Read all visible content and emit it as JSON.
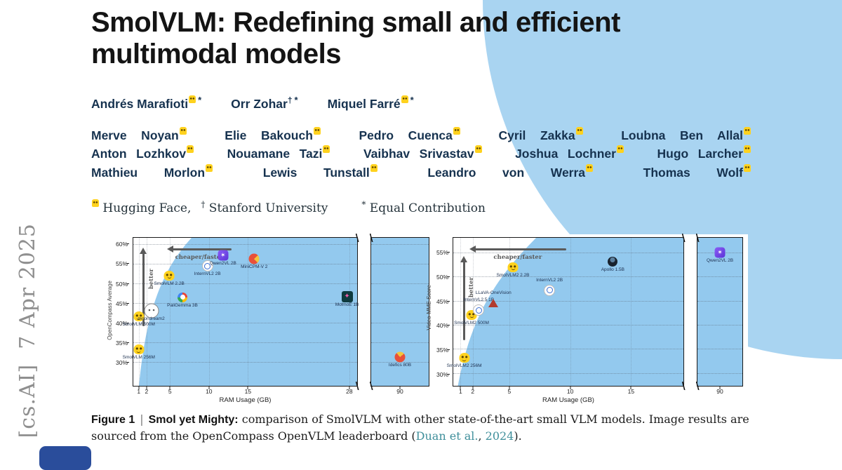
{
  "page": {
    "side_label": "[cs.AI]  7 Apr 2025",
    "title": "SmolVLM: Redefining small and efficient multimodal models",
    "authors_primary": [
      {
        "name": "Andrés Marafioti",
        "affil": "hf",
        "equal": true
      },
      {
        "name": "Orr Zohar",
        "affil": "dagger",
        "equal": true
      },
      {
        "name": "Miquel Farré",
        "affil": "hf",
        "equal": true
      }
    ],
    "authors_secondary": [
      "Merve Noyan",
      "Elie Bakouch",
      "Pedro Cuenca",
      "Cyril Zakka",
      "Loubna Ben Allal",
      "Anton Lozhkov",
      "Nouamane Tazi",
      "Vaibhav Srivastav",
      "Joshua Lochner",
      "Hugo Larcher",
      "Mathieu Morlon",
      "Lewis Tunstall",
      "Leandro von Werra",
      "Thomas Wolf"
    ],
    "affiliations": {
      "dagger_symbol": "†",
      "star_symbol": "*",
      "parts": [
        {
          "icon": "hf-badge",
          "text": "Hugging Face,"
        },
        {
          "symbol": "†",
          "text": "Stanford University"
        },
        {
          "symbol": "*",
          "text": "Equal Contribution",
          "gap": true
        }
      ]
    },
    "caption": {
      "figure_label": "Figure 1",
      "separator": "|",
      "bold": "Smol yet Mighty:",
      "text": " comparison of SmolVLM with other state-of-the-art small VLM models. Image results are sourced from the OpenCompass OpenVLM leaderboard (",
      "cite_link": "Duan et al.",
      "cite_sep": ", ",
      "cite_year": "2024",
      "close": ")."
    },
    "colors": {
      "accent_blue": "#a9d4f1",
      "chart_fill": "#93c9ee",
      "hf_yellow": "#ffd21e",
      "link_teal": "#3f8f9b",
      "author_navy": "#16324f",
      "bottom_shape_blue": "#2a4d9b"
    }
  },
  "icon_glyphs": {
    "molmo": "✦",
    "qwen": "✶"
  },
  "chart_data": [
    {
      "type": "scatter",
      "xlabel": "RAM Usage (GB)",
      "ylabel": "OpenCompass Average",
      "ylim": [
        24,
        61.8
      ],
      "x_main_range": [
        0.3,
        29
      ],
      "x_axis_break": true,
      "grid": true,
      "annotations": {
        "horizontal": "cheaper/faster",
        "vertical": "better"
      },
      "y_ticks": [
        {
          "value": 30,
          "label": "30%"
        },
        {
          "value": 35,
          "label": "35%"
        },
        {
          "value": 40,
          "label": "40%"
        },
        {
          "value": 45,
          "label": "45%"
        },
        {
          "value": 50,
          "label": "50%"
        },
        {
          "value": 55,
          "label": "55%"
        },
        {
          "value": 60,
          "label": "60%"
        }
      ],
      "x_ticks_main": [
        {
          "value": 1,
          "label": "1"
        },
        {
          "value": 2,
          "label": "2"
        },
        {
          "value": 5,
          "label": "5"
        },
        {
          "value": 10,
          "label": "10"
        },
        {
          "value": 15,
          "label": "15"
        },
        {
          "value": 28,
          "label": "28"
        }
      ],
      "x_ticks_side": [
        {
          "value": 90,
          "label": "90"
        }
      ],
      "points": [
        {
          "label": "SmolVLM 256M",
          "x": 1.0,
          "y": 33.3,
          "icon": "hf",
          "label_pos": "below"
        },
        {
          "label": "SmolVLM 500M",
          "x": 1.0,
          "y": 41.7,
          "icon": "hf",
          "label_pos": "below"
        },
        {
          "label": "moondream2",
          "x": 2.6,
          "y": 43.2,
          "icon": "moon",
          "label_pos": "below"
        },
        {
          "label": "SmolVLM 2.2B",
          "x": 4.9,
          "y": 52.2,
          "icon": "hf",
          "label_pos": "below"
        },
        {
          "label": "PaliGemma 3B",
          "x": 6.6,
          "y": 46.6,
          "icon": "google",
          "label_pos": "below"
        },
        {
          "label": "InternVL2 2B",
          "x": 9.8,
          "y": 54.6,
          "icon": "internvl",
          "label_pos": "below"
        },
        {
          "label": "Qwen2VL 2B",
          "x": 11.8,
          "y": 57.3,
          "icon": "qwen",
          "label_pos": "below"
        },
        {
          "label": "MiniCPM-V 2",
          "x": 15.8,
          "y": 56.5,
          "icon": "minicpm",
          "label_pos": "below"
        },
        {
          "label": "MolmoE 1B",
          "x": 27.7,
          "y": 46.8,
          "icon": "molmo",
          "label_pos": "below"
        },
        {
          "label": "Idefics 80B",
          "x": 90,
          "y": 31.3,
          "icon": "idefics",
          "label_pos": "below"
        }
      ]
    },
    {
      "type": "scatter",
      "xlabel": "RAM Usage (GB)",
      "ylabel": "Video-MME Score",
      "ylim": [
        27.5,
        58.2
      ],
      "x_main_range": [
        0.4,
        19.3
      ],
      "x_axis_break": true,
      "grid": true,
      "annotations": {
        "horizontal": "cheaper/faster",
        "vertical": "better"
      },
      "y_ticks": [
        {
          "value": 30,
          "label": "30%"
        },
        {
          "value": 35,
          "label": "35%"
        },
        {
          "value": 40,
          "label": "40%"
        },
        {
          "value": 45,
          "label": "45%"
        },
        {
          "value": 50,
          "label": "50%"
        },
        {
          "value": 55,
          "label": "55%"
        }
      ],
      "x_ticks_main": [
        {
          "value": 1,
          "label": "1"
        },
        {
          "value": 2,
          "label": "2"
        },
        {
          "value": 5,
          "label": "5"
        },
        {
          "value": 10,
          "label": "10"
        },
        {
          "value": 15,
          "label": "15"
        }
      ],
      "x_ticks_side": [
        {
          "value": 90,
          "label": "90"
        }
      ],
      "points": [
        {
          "label": "SmolVLM2 256M",
          "x": 1.3,
          "y": 33.3,
          "icon": "hf",
          "label_pos": "below"
        },
        {
          "label": "SmolVLM2 500M",
          "x": 1.9,
          "y": 42.2,
          "icon": "hf",
          "label_pos": "below"
        },
        {
          "label": "InternVL2.5 1B",
          "x": 2.5,
          "y": 43.2,
          "icon": "internvl",
          "label_pos": "above"
        },
        {
          "label": "LLaVA-OneVision",
          "x": 3.7,
          "y": 44.6,
          "icon": "llava",
          "label_pos": "above"
        },
        {
          "label": "SmolVLM2 2.2B",
          "x": 5.3,
          "y": 52.1,
          "icon": "hf",
          "label_pos": "below"
        },
        {
          "label": "InternVL2 2B",
          "x": 8.3,
          "y": 47.3,
          "icon": "internvl",
          "label_pos": "above"
        },
        {
          "label": "Apollo 1.5B",
          "x": 13.5,
          "y": 53.2,
          "icon": "apollo",
          "label_pos": "below"
        },
        {
          "label": "Qwen2VL 2B",
          "x": 90,
          "y": 55.2,
          "icon": "qwen",
          "label_pos": "below"
        }
      ]
    }
  ]
}
